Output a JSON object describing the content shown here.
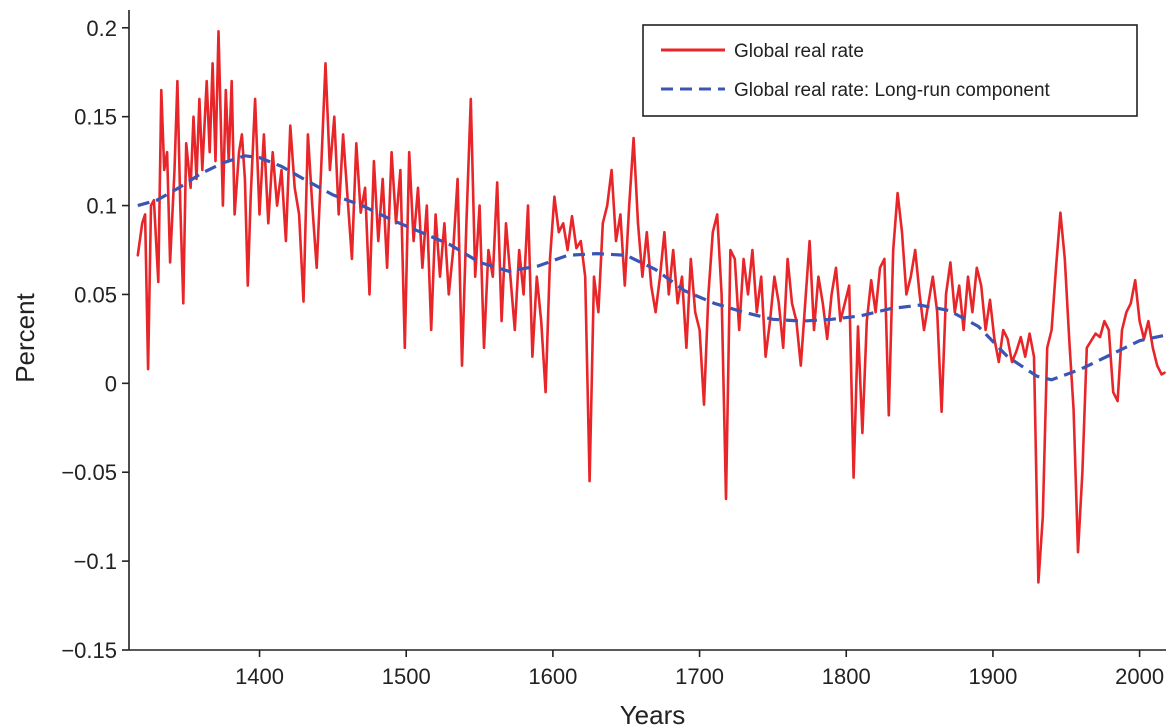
{
  "chart_data": {
    "type": "line",
    "xlabel": "Years",
    "ylabel": "Percent",
    "xlim": [
      1311,
      2018
    ],
    "ylim": [
      -0.15,
      0.21
    ],
    "x_ticks": [
      1400,
      1500,
      1600,
      1700,
      1800,
      1900,
      2000
    ],
    "y_ticks": [
      0.2,
      0.15,
      0.1,
      0.05,
      0,
      -0.05,
      -0.1,
      -0.15
    ],
    "y_tick_labels": [
      "0.2",
      "0.15",
      "0.1",
      "0.05",
      "0",
      "−0.05",
      "−0.1",
      "−0.15"
    ],
    "grid": false,
    "legend_position": "top-right",
    "series": [
      {
        "name": "Global real rate",
        "color": "#e8262a",
        "style": "solid",
        "x": [
          1317,
          1320,
          1322,
          1324,
          1326,
          1328,
          1331,
          1333,
          1335,
          1337,
          1339,
          1342,
          1344,
          1346,
          1348,
          1350,
          1353,
          1355,
          1357,
          1359,
          1361,
          1364,
          1366,
          1368,
          1370,
          1372,
          1375,
          1377,
          1379,
          1381,
          1383,
          1386,
          1388,
          1390,
          1392,
          1394,
          1397,
          1400,
          1403,
          1406,
          1409,
          1412,
          1415,
          1418,
          1421,
          1424,
          1427,
          1430,
          1433,
          1436,
          1439,
          1442,
          1445,
          1448,
          1451,
          1454,
          1457,
          1460,
          1463,
          1466,
          1469,
          1472,
          1475,
          1478,
          1481,
          1484,
          1487,
          1490,
          1493,
          1496,
          1499,
          1502,
          1505,
          1508,
          1511,
          1514,
          1517,
          1520,
          1523,
          1526,
          1529,
          1532,
          1535,
          1538,
          1541,
          1544,
          1547,
          1550,
          1553,
          1556,
          1559,
          1562,
          1565,
          1568,
          1571,
          1574,
          1577,
          1580,
          1583,
          1586,
          1589,
          1592,
          1595,
          1598,
          1601,
          1604,
          1607,
          1610,
          1613,
          1616,
          1619,
          1622,
          1625,
          1628,
          1631,
          1634,
          1637,
          1640,
          1643,
          1646,
          1649,
          1652,
          1655,
          1658,
          1661,
          1664,
          1667,
          1670,
          1673,
          1676,
          1679,
          1682,
          1685,
          1688,
          1691,
          1694,
          1697,
          1700,
          1703,
          1706,
          1709,
          1712,
          1715,
          1718,
          1721,
          1724,
          1727,
          1730,
          1733,
          1736,
          1739,
          1742,
          1745,
          1748,
          1751,
          1754,
          1757,
          1760,
          1763,
          1766,
          1769,
          1772,
          1775,
          1778,
          1781,
          1784,
          1787,
          1790,
          1793,
          1796,
          1799,
          1802,
          1805,
          1808,
          1811,
          1814,
          1817,
          1820,
          1823,
          1826,
          1829,
          1832,
          1835,
          1838,
          1841,
          1844,
          1847,
          1850,
          1853,
          1856,
          1859,
          1862,
          1865,
          1868,
          1871,
          1874,
          1877,
          1880,
          1883,
          1886,
          1889,
          1892,
          1895,
          1898,
          1901,
          1904,
          1907,
          1910,
          1913,
          1916,
          1919,
          1922,
          1925,
          1928,
          1931,
          1934,
          1937,
          1940,
          1943,
          1946,
          1949,
          1952,
          1955,
          1958,
          1961,
          1964,
          1967,
          1970,
          1973,
          1976,
          1979,
          1982,
          1985,
          1988,
          1991,
          1994,
          1997,
          2000,
          2003,
          2006,
          2009,
          2012,
          2015,
          2017
        ],
        "y": [
          0.072,
          0.09,
          0.095,
          0.008,
          0.1,
          0.103,
          0.057,
          0.165,
          0.12,
          0.13,
          0.068,
          0.12,
          0.17,
          0.1,
          0.045,
          0.135,
          0.11,
          0.15,
          0.115,
          0.16,
          0.12,
          0.17,
          0.13,
          0.18,
          0.125,
          0.198,
          0.1,
          0.165,
          0.125,
          0.17,
          0.095,
          0.13,
          0.14,
          0.115,
          0.055,
          0.105,
          0.16,
          0.095,
          0.14,
          0.09,
          0.13,
          0.1,
          0.12,
          0.08,
          0.145,
          0.11,
          0.095,
          0.046,
          0.14,
          0.1,
          0.065,
          0.12,
          0.18,
          0.12,
          0.15,
          0.095,
          0.14,
          0.105,
          0.07,
          0.135,
          0.096,
          0.11,
          0.05,
          0.125,
          0.08,
          0.115,
          0.065,
          0.13,
          0.09,
          0.12,
          0.02,
          0.13,
          0.08,
          0.11,
          0.065,
          0.1,
          0.03,
          0.095,
          0.06,
          0.09,
          0.05,
          0.075,
          0.115,
          0.01,
          0.09,
          0.16,
          0.06,
          0.1,
          0.02,
          0.075,
          0.06,
          0.113,
          0.035,
          0.09,
          0.06,
          0.03,
          0.075,
          0.05,
          0.1,
          0.015,
          0.06,
          0.035,
          -0.005,
          0.07,
          0.105,
          0.085,
          0.09,
          0.075,
          0.094,
          0.076,
          0.08,
          0.06,
          -0.055,
          0.06,
          0.04,
          0.09,
          0.1,
          0.12,
          0.08,
          0.095,
          0.055,
          0.1,
          0.138,
          0.09,
          0.06,
          0.085,
          0.055,
          0.04,
          0.06,
          0.085,
          0.05,
          0.075,
          0.045,
          0.06,
          0.02,
          0.07,
          0.04,
          0.03,
          -0.012,
          0.05,
          0.085,
          0.095,
          0.05,
          -0.065,
          0.075,
          0.07,
          0.03,
          0.07,
          0.05,
          0.075,
          0.04,
          0.06,
          0.015,
          0.035,
          0.06,
          0.045,
          0.02,
          0.07,
          0.045,
          0.035,
          0.01,
          0.045,
          0.08,
          0.03,
          0.06,
          0.045,
          0.025,
          0.05,
          0.065,
          0.035,
          0.045,
          0.055,
          -0.053,
          0.032,
          -0.028,
          0.035,
          0.058,
          0.04,
          0.065,
          0.07,
          -0.018,
          0.075,
          0.107,
          0.085,
          0.05,
          0.06,
          0.075,
          0.05,
          0.03,
          0.045,
          0.06,
          0.04,
          -0.016,
          0.05,
          0.068,
          0.04,
          0.055,
          0.03,
          0.06,
          0.04,
          0.065,
          0.055,
          0.03,
          0.047,
          0.025,
          0.012,
          0.03,
          0.025,
          0.012,
          0.018,
          0.026,
          0.015,
          0.028,
          0.015,
          -0.112,
          -0.075,
          0.02,
          0.03,
          0.065,
          0.096,
          0.07,
          0.025,
          -0.015,
          -0.095,
          -0.05,
          0.02,
          0.024,
          0.028,
          0.026,
          0.035,
          0.03,
          -0.005,
          -0.01,
          0.03,
          0.04,
          0.045,
          0.058,
          0.035,
          0.025,
          0.035,
          0.02,
          0.01,
          0.005,
          0.006
        ]
      },
      {
        "name": "Global real rate: Long-run component",
        "color": "#3b55b4",
        "style": "dashed",
        "x": [
          1317,
          1330,
          1345,
          1360,
          1375,
          1390,
          1400,
          1415,
          1430,
          1450,
          1470,
          1490,
          1510,
          1530,
          1550,
          1570,
          1590,
          1610,
          1630,
          1650,
          1670,
          1690,
          1710,
          1730,
          1750,
          1770,
          1790,
          1810,
          1830,
          1850,
          1870,
          1890,
          1910,
          1930,
          1940,
          1960,
          1980,
          2000,
          2017
        ],
        "y": [
          0.1,
          0.103,
          0.11,
          0.118,
          0.124,
          0.128,
          0.127,
          0.122,
          0.115,
          0.106,
          0.1,
          0.092,
          0.085,
          0.078,
          0.068,
          0.063,
          0.066,
          0.072,
          0.073,
          0.072,
          0.064,
          0.052,
          0.045,
          0.04,
          0.036,
          0.035,
          0.036,
          0.038,
          0.042,
          0.044,
          0.041,
          0.032,
          0.015,
          0.004,
          0.002,
          0.008,
          0.016,
          0.024,
          0.027
        ]
      }
    ]
  }
}
